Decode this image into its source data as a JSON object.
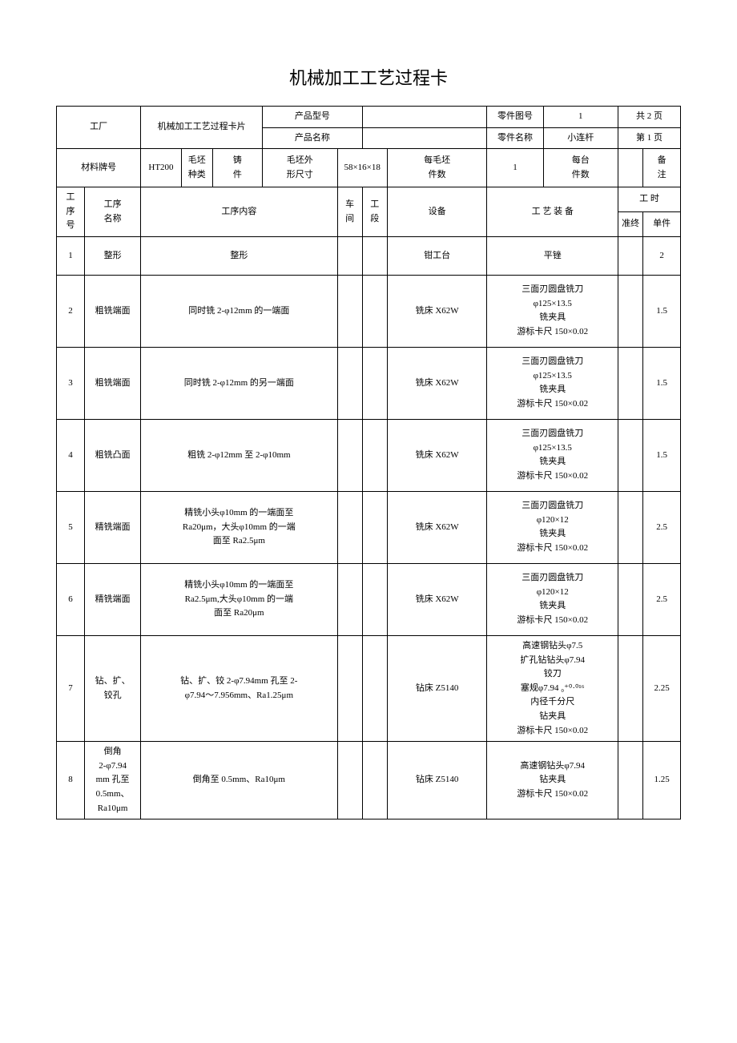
{
  "title": "机械加工工艺过程卡",
  "header": {
    "factory_label": "工厂",
    "card_name": "机械加工工艺过程卡片",
    "product_model_label": "产品型号",
    "product_model": "",
    "part_drawing_label": "零件图号",
    "part_drawing": "1",
    "total_pages": "共 2 页",
    "product_name_label": "产品名称",
    "product_name": "",
    "part_name_label": "零件名称",
    "part_name": "小连杆",
    "page_no": "第 1 页",
    "material_label": "材料牌号",
    "material": "HT200",
    "blank_type_label": "毛坯\n种类",
    "blank_type": "铸\n件",
    "blank_size_label": "毛坯外\n形尺寸",
    "blank_size": "58×16×18",
    "per_blank_label": "每毛坯\n件数",
    "per_blank": "1",
    "per_unit_label": "每台\n件数",
    "per_unit": "",
    "remark_label": "备\n注"
  },
  "cols": {
    "seq": "工\n序\n号",
    "name": "工序\n名称",
    "content": "工序内容",
    "shop": "车\n间",
    "section": "工\n段",
    "equipment": "设备",
    "tooling": "工 艺 装 备",
    "time": "工 时",
    "prep": "准终",
    "unit": "单件"
  },
  "rows": [
    {
      "seq": "1",
      "name": "整形",
      "content": "整形",
      "shop": "",
      "section": "",
      "equipment": "钳工台",
      "tooling": "平锉",
      "prep": "",
      "unit": "2"
    },
    {
      "seq": "2",
      "name": "粗铣端面",
      "content": "同时铣 2-φ12mm 的一端面",
      "shop": "",
      "section": "",
      "equipment": "铣床 X62W",
      "tooling": "三面刃圆盘铣刀\nφ125×13.5\n铣夹具\n游标卡尺 150×0.02",
      "prep": "",
      "unit": "1.5"
    },
    {
      "seq": "3",
      "name": "粗铣端面",
      "content": "同时铣 2-φ12mm 的另一端面",
      "shop": "",
      "section": "",
      "equipment": "铣床 X62W",
      "tooling": "三面刃圆盘铣刀\nφ125×13.5\n铣夹具\n游标卡尺 150×0.02",
      "prep": "",
      "unit": "1.5"
    },
    {
      "seq": "4",
      "name": "粗铣凸面",
      "content": "粗铣 2-φ12mm 至 2-φ10mm",
      "shop": "",
      "section": "",
      "equipment": "铣床 X62W",
      "tooling": "三面刃圆盘铣刀\nφ125×13.5\n铣夹具\n游标卡尺 150×0.02",
      "prep": "",
      "unit": "1.5"
    },
    {
      "seq": "5",
      "name": "精铣端面",
      "content": "精铣小头φ10mm 的一端面至\nRa20μm，大头φ10mm 的一端\n面至 Ra2.5μm",
      "shop": "",
      "section": "",
      "equipment": "铣床 X62W",
      "tooling": "三面刃圆盘铣刀\nφ120×12\n铣夹具\n游标卡尺 150×0.02",
      "prep": "",
      "unit": "2.5"
    },
    {
      "seq": "6",
      "name": "精铣端面",
      "content": "精铣小头φ10mm 的一端面至\nRa2.5μm,大头φ10mm 的一端\n面至 Ra20μm",
      "shop": "",
      "section": "",
      "equipment": "铣床 X62W",
      "tooling": "三面刃圆盘铣刀\nφ120×12\n铣夹具\n游标卡尺 150×0.02",
      "prep": "",
      "unit": "2.5"
    },
    {
      "seq": "7",
      "name": "钻、扩、\n铰孔",
      "content": "钻、扩、铰 2-φ7.94mm 孔至 2-\nφ7.94～7.956mm、Ra1.25μm",
      "shop": "",
      "section": "",
      "equipment": "钻床 Z5140",
      "tooling": "高速钢钻头φ7.5\n扩孔钻钻头φ7.94\n铰刀\n塞规φ7.94 ₀⁺⁰·⁰¹⁶\n内径千分尺\n钻夹具\n游标卡尺 150×0.02",
      "prep": "",
      "unit": "2.25"
    },
    {
      "seq": "8",
      "name": "倒角\n2-φ7.94\nmm 孔至\n0.5mm、\nRa10μm",
      "content": "倒角至 0.5mm、Ra10μm",
      "shop": "",
      "section": "",
      "equipment": "钻床 Z5140",
      "tooling": "高速钢钻头φ7.94\n钻夹具\n游标卡尺 150×0.02",
      "prep": "",
      "unit": "1.25"
    }
  ],
  "style": {
    "font_family": "SimSun",
    "border_color": "#000000",
    "background_color": "#ffffff",
    "title_fontsize": 22,
    "cell_fontsize": 11,
    "col_widths_pct": [
      4.5,
      9,
      6.5,
      5,
      8,
      12,
      4,
      4,
      16,
      9,
      12,
      4,
      6
    ]
  }
}
